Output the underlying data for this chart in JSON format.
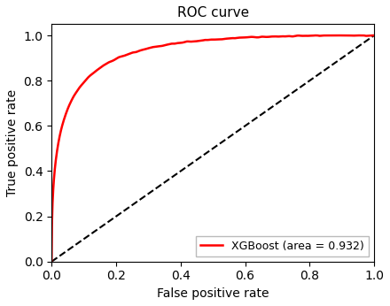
{
  "title": "ROC curve",
  "xlabel": "False positive rate",
  "ylabel": "True positive rate",
  "legend_label": "XGBoost (area = 0.932)",
  "roc_color": "#ff0000",
  "diagonal_color": "#000000",
  "roc_linewidth": 1.8,
  "diagonal_linewidth": 1.5,
  "xlim": [
    0.0,
    1.0
  ],
  "ylim": [
    0.0,
    1.05
  ],
  "auc": 0.932,
  "background_color": "#ffffff",
  "figsize": [
    4.4,
    3.46
  ],
  "dpi": 100
}
